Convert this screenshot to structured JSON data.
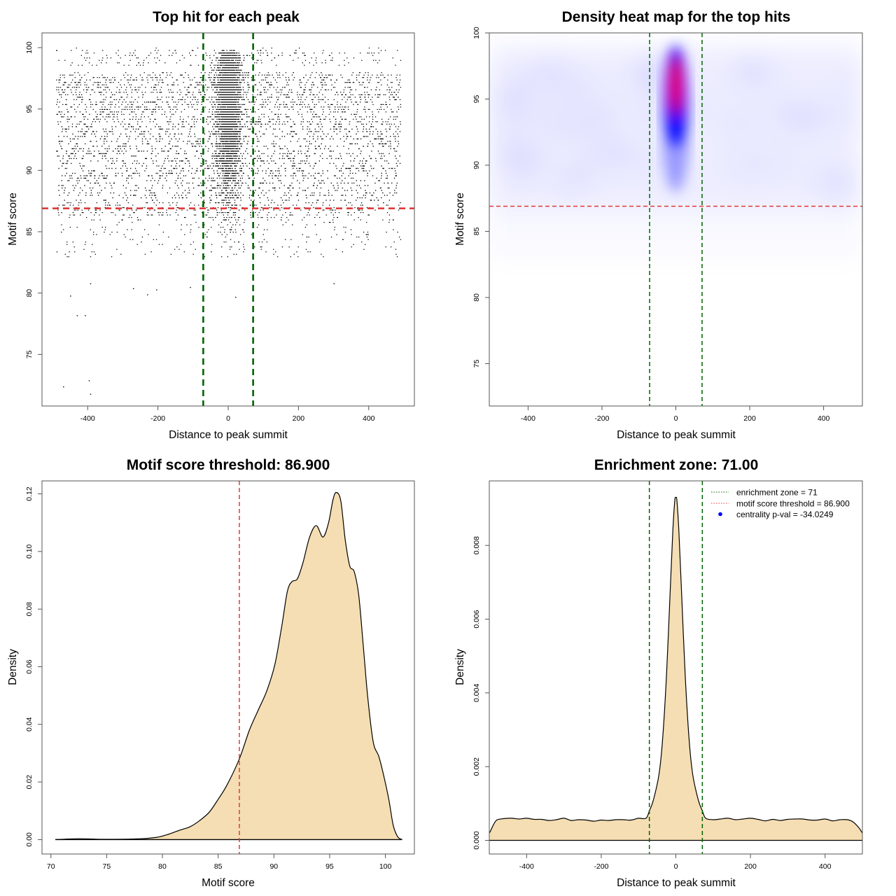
{
  "colors": {
    "points": "#000000",
    "threshold_line": "#DF3A3A",
    "zone_line": "#006400",
    "density_fill": "#F5DEB3",
    "density_line": "#000000",
    "heat_low": "#FFFFFF",
    "heat_mid": "#0000FF",
    "heat_high": "#FF0000",
    "legend_dot": "#0000FF"
  },
  "chart_data": [
    {
      "id": "scatter",
      "type": "scatter",
      "title": "Top hit for each peak",
      "xlabel": "Distance to peak summit",
      "ylabel": "Motif score",
      "xlim": [
        -530,
        530
      ],
      "ylim": [
        70.8,
        101.2
      ],
      "xticks": [
        -400,
        -200,
        0,
        200,
        400
      ],
      "yticks": [
        75,
        80,
        85,
        90,
        95,
        100
      ],
      "hlines": [
        86.9
      ],
      "vlines": [
        -71,
        71
      ],
      "point_description": "Several thousand peaks; uniform background across -490..490 mostly between scores 84 and 100, strongly concentrated near 0 (sd ~20) with scores 88-100",
      "outliers": [
        {
          "x": -470,
          "y": 72.4
        },
        {
          "x": -397,
          "y": 72.9
        },
        {
          "x": -393,
          "y": 71.8
        },
        {
          "x": -431,
          "y": 78.2
        },
        {
          "x": -408,
          "y": 78.2
        },
        {
          "x": -450,
          "y": 79.8
        },
        {
          "x": -231,
          "y": 79.9
        },
        {
          "x": -271,
          "y": 80.4
        },
        {
          "x": -205,
          "y": 80.3
        },
        {
          "x": -393,
          "y": 80.8
        },
        {
          "x": -109,
          "y": 80.5
        },
        {
          "x": 20,
          "y": 79.7
        },
        {
          "x": 300,
          "y": 80.8
        }
      ]
    },
    {
      "id": "heatmap",
      "type": "heatmap",
      "title": "Density heat map for the top hits",
      "xlabel": "Distance to peak summit",
      "ylabel": "Motif score",
      "xlim": [
        -505,
        505
      ],
      "ylim": [
        71.8,
        100
      ],
      "xticks": [
        -400,
        -200,
        0,
        200,
        400
      ],
      "yticks": [
        75,
        80,
        85,
        90,
        95,
        100
      ],
      "hlines": [
        86.9
      ],
      "vlines": [
        -71,
        71
      ],
      "hotspot": {
        "x": 0,
        "y": 96,
        "peak_color": "red"
      },
      "background": "faint uniform blue haze between scores ~83 and ~100"
    },
    {
      "id": "score-density",
      "type": "area",
      "title": "Motif score threshold: 86.900",
      "xlabel": "Motif score",
      "ylabel": "Density",
      "xlim": [
        69.2,
        102.6
      ],
      "ylim": [
        -0.005,
        0.1245
      ],
      "xticks": [
        70,
        75,
        80,
        85,
        90,
        95,
        100
      ],
      "yticks": [
        0.0,
        0.02,
        0.04,
        0.06,
        0.08,
        0.1,
        0.12
      ],
      "ytick_labels": [
        "0.00",
        "0.02",
        "0.04",
        "0.06",
        "0.08",
        "0.10",
        "0.12"
      ],
      "vlines": [
        86.9
      ],
      "x": [
        70.4,
        72.5,
        75,
        78,
        79.5,
        80.5,
        81.5,
        82.5,
        83.3,
        84.2,
        85.0,
        85.8,
        86.9,
        87.8,
        88.6,
        89.4,
        90.1,
        90.7,
        91.2,
        91.6,
        92.1,
        92.6,
        93.2,
        93.8,
        94.4,
        94.9,
        95.3,
        95.6,
        96.0,
        96.4,
        96.8,
        97.2,
        97.6,
        98.0,
        98.4,
        98.9,
        99.4,
        99.8,
        100.3,
        100.7,
        101.1,
        101.5
      ],
      "y": [
        0.0,
        0.0003,
        0.0001,
        0.0003,
        0.0008,
        0.0018,
        0.0032,
        0.0045,
        0.0065,
        0.0095,
        0.014,
        0.019,
        0.028,
        0.038,
        0.045,
        0.052,
        0.061,
        0.074,
        0.086,
        0.0895,
        0.0905,
        0.096,
        0.105,
        0.109,
        0.105,
        0.11,
        0.118,
        0.1205,
        0.1175,
        0.104,
        0.095,
        0.093,
        0.085,
        0.068,
        0.05,
        0.034,
        0.029,
        0.023,
        0.014,
        0.005,
        0.001,
        0.0
      ]
    },
    {
      "id": "position-density",
      "type": "area",
      "title": "Enrichment zone: 71.00",
      "xlabel": "Distance to peak summit",
      "ylabel": "Density",
      "xlim": [
        -500,
        500
      ],
      "ylim": [
        -0.00037,
        0.00975
      ],
      "xticks": [
        -400,
        -200,
        0,
        200,
        400
      ],
      "yticks": [
        0.0,
        0.002,
        0.004,
        0.006,
        0.008
      ],
      "ytick_labels": [
        "0.000",
        "0.002",
        "0.004",
        "0.006",
        "0.008"
      ],
      "vlines": [
        -71,
        71
      ],
      "x": [
        -530,
        -515,
        -500,
        -490,
        -480,
        -460,
        -440,
        -420,
        -400,
        -380,
        -360,
        -340,
        -320,
        -300,
        -280,
        -260,
        -240,
        -220,
        -200,
        -180,
        -160,
        -140,
        -120,
        -100,
        -80,
        -71,
        -60,
        -45,
        -35,
        -25,
        -15,
        -8,
        -3,
        0,
        3,
        8,
        15,
        25,
        35,
        45,
        60,
        71,
        80,
        100,
        120,
        140,
        160,
        180,
        200,
        220,
        240,
        260,
        280,
        300,
        320,
        340,
        360,
        380,
        400,
        420,
        440,
        460,
        475,
        490,
        500,
        515,
        530
      ],
      "y": [
        0.0,
        5e-05,
        0.0002,
        0.0004,
        0.00055,
        0.00059,
        0.0006,
        0.00058,
        0.0006,
        0.00057,
        0.00057,
        0.00054,
        0.00056,
        0.0006,
        0.00054,
        0.00056,
        0.00055,
        0.00052,
        0.00055,
        0.00054,
        0.00056,
        0.00056,
        0.00055,
        0.0006,
        0.0006,
        0.0008,
        0.0011,
        0.0018,
        0.0028,
        0.0045,
        0.0068,
        0.0084,
        0.0092,
        0.0093,
        0.0092,
        0.0084,
        0.0068,
        0.0045,
        0.0028,
        0.0018,
        0.0011,
        0.0008,
        0.0006,
        0.00056,
        0.00058,
        0.0006,
        0.00056,
        0.00058,
        0.0006,
        0.00057,
        0.00053,
        0.00057,
        0.00054,
        0.00057,
        0.00058,
        0.00058,
        0.00055,
        0.00055,
        0.00058,
        0.00053,
        0.00056,
        0.00056,
        0.0005,
        0.00035,
        0.0002,
        5e-05,
        0.0
      ],
      "legend": {
        "position": "top-right",
        "entries": [
          {
            "label": "enrichment zone = 71",
            "style": "dotted-line",
            "color": "#006400"
          },
          {
            "label": "motif score threshold = 86.900",
            "style": "dotted-line",
            "color": "#DF3A3A"
          },
          {
            "label": "centrality p-val = -34.0249",
            "style": "dot",
            "color": "#0000FF"
          }
        ]
      }
    }
  ]
}
